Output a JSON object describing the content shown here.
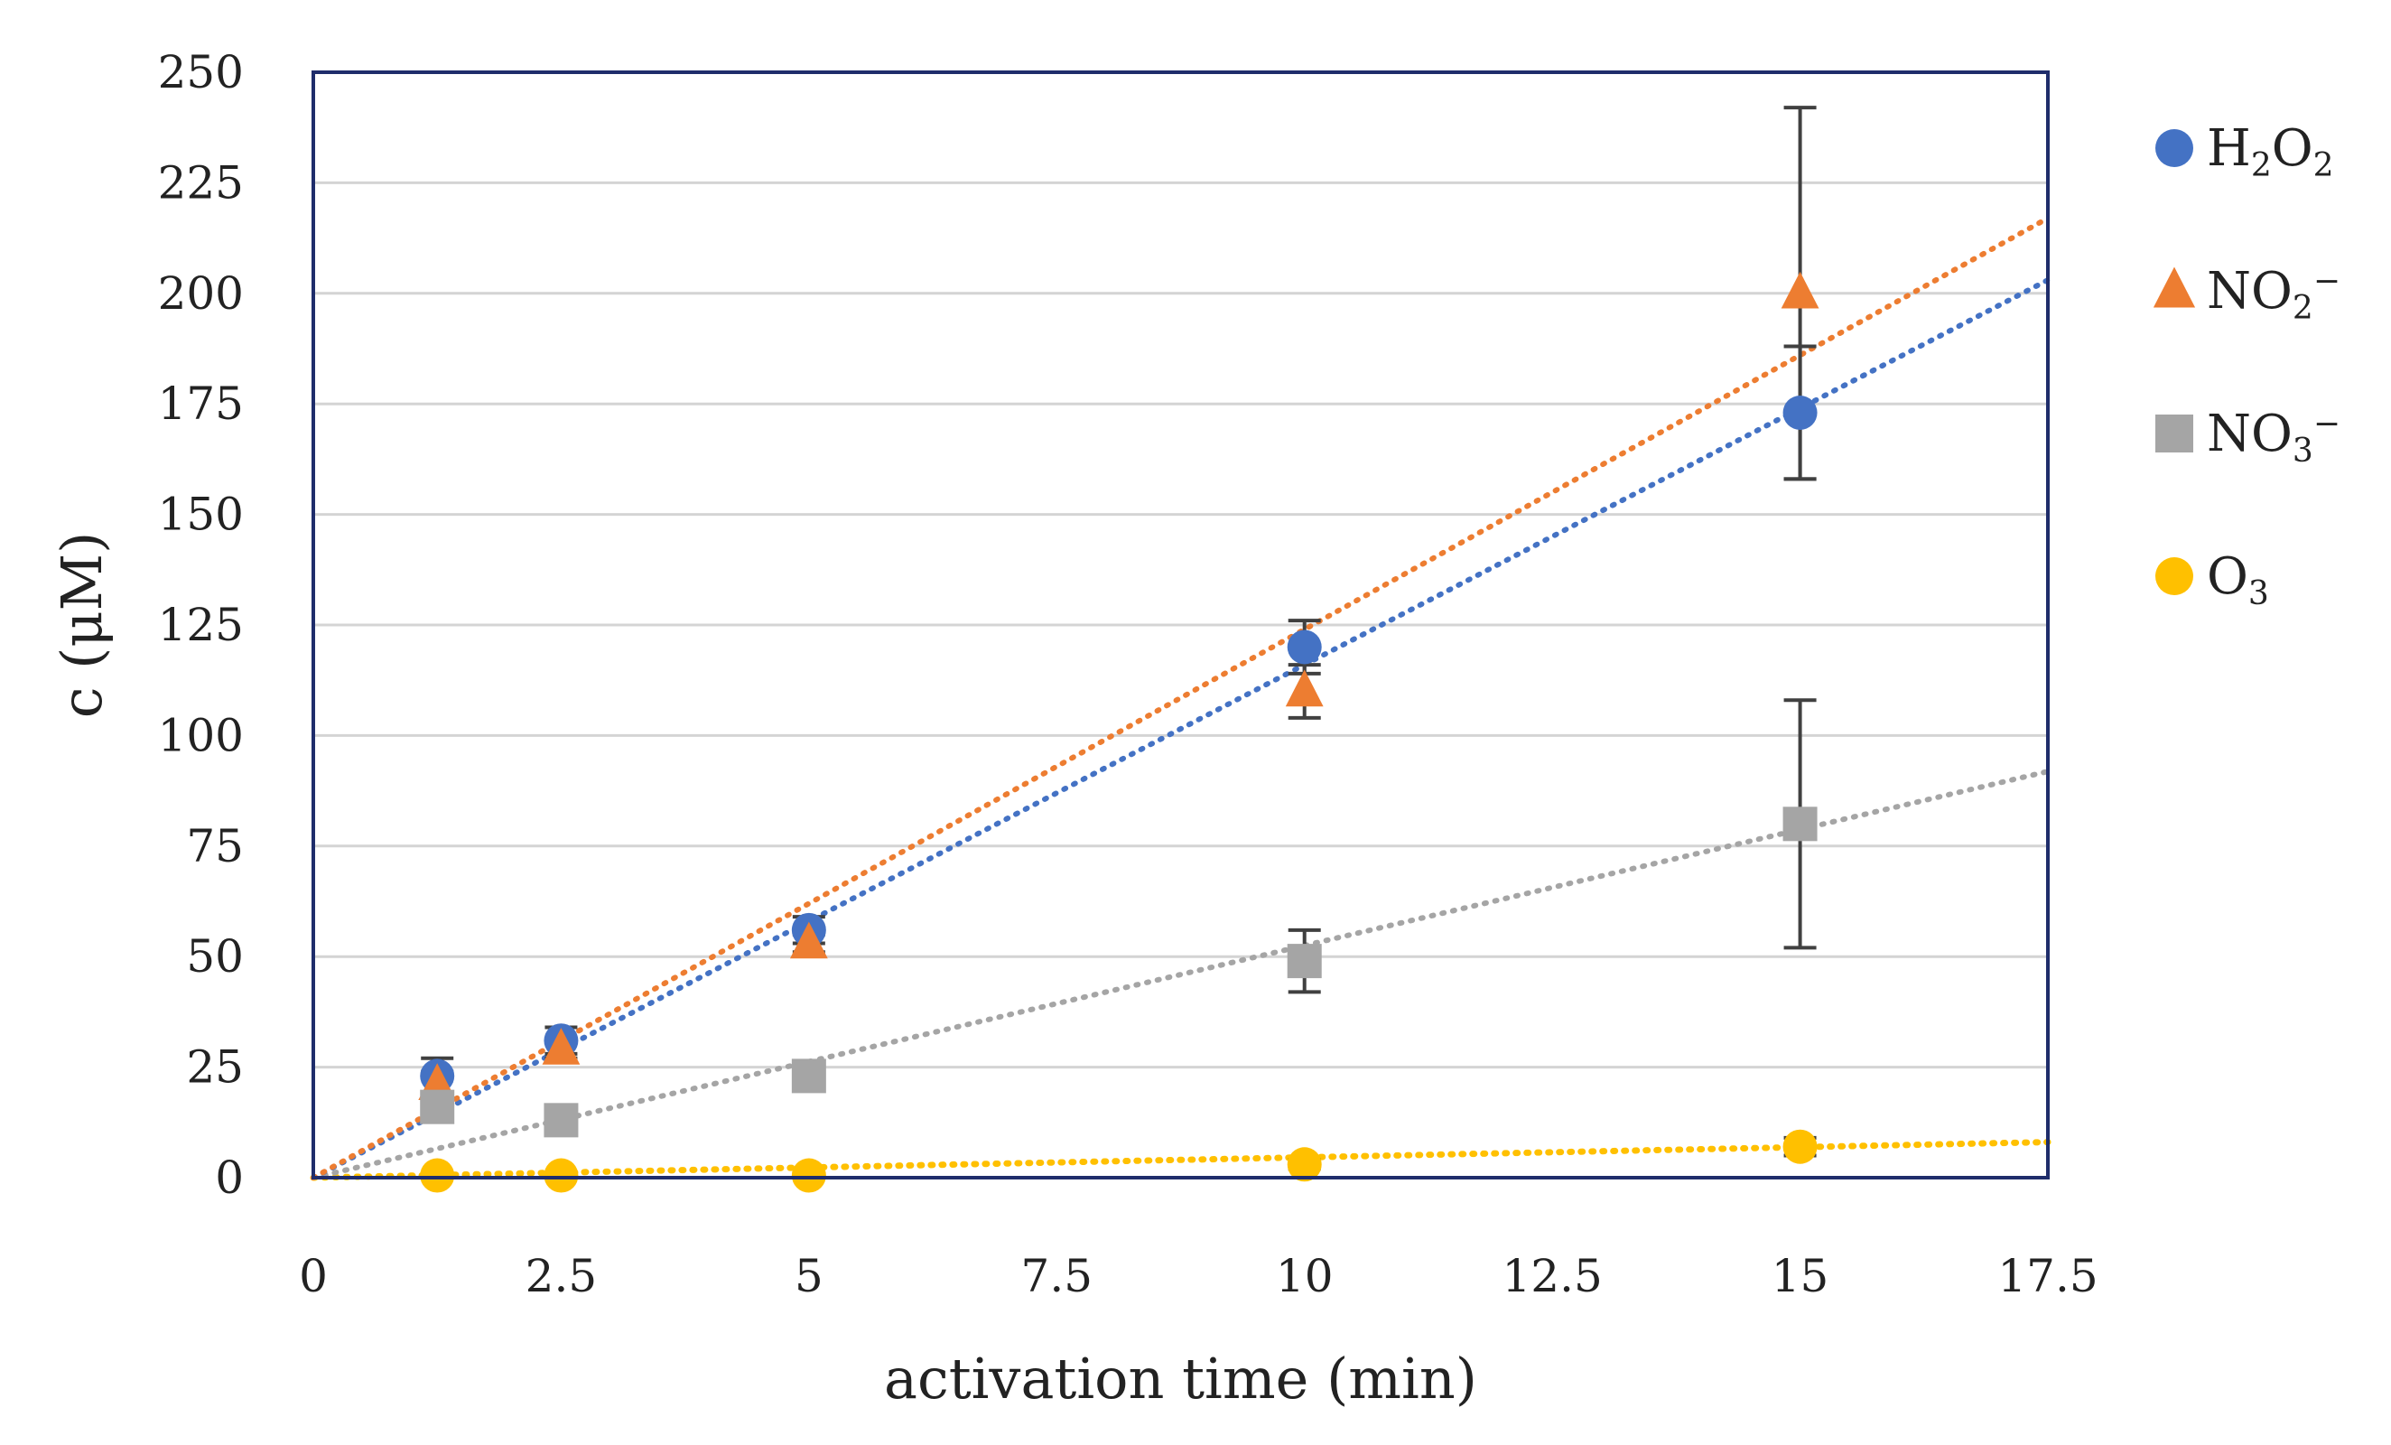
{
  "chart_data": {
    "type": "scatter",
    "title": "",
    "xlabel": "activation time (min)",
    "ylabel": "c (μM)",
    "xlim": [
      0,
      17.5
    ],
    "ylim": [
      0,
      250
    ],
    "xticks": [
      "0",
      "2.5",
      "5",
      "7.5",
      "10",
      "12.5",
      "15",
      "17.5"
    ],
    "yticks": [
      "0",
      "25",
      "50",
      "75",
      "100",
      "125",
      "150",
      "175",
      "200",
      "225",
      "250"
    ],
    "grid": "horizontal",
    "legend_position": "right",
    "series": [
      {
        "name": "H2O2",
        "label_parts": [
          "H",
          "2",
          "O",
          "2",
          ""
        ],
        "marker": "circle",
        "color": "#4472C4",
        "x": [
          1.25,
          2.5,
          5,
          10,
          15
        ],
        "y": [
          23,
          31,
          56,
          120,
          173
        ],
        "err": [
          4,
          3,
          3,
          6,
          15
        ],
        "trend": [
          0,
          11.6
        ]
      },
      {
        "name": "NO2-",
        "label_parts": [
          "NO",
          "2",
          "",
          "",
          "−"
        ],
        "marker": "triangle",
        "color": "#ED7D31",
        "x": [
          1.25,
          2.5,
          5,
          10,
          15
        ],
        "y": [
          21,
          29,
          53,
          110,
          200
        ],
        "err": [
          3,
          2,
          2,
          6,
          42
        ],
        "trend": [
          0,
          12.4
        ]
      },
      {
        "name": "NO3-",
        "label_parts": [
          "NO",
          "3",
          "",
          "",
          "−"
        ],
        "marker": "square",
        "color": "#A5A5A5",
        "x": [
          1.25,
          2.5,
          5,
          10,
          15
        ],
        "y": [
          16,
          13,
          23,
          49,
          80
        ],
        "err": [
          2,
          2,
          2,
          7,
          28
        ],
        "trend": [
          0,
          5.25
        ]
      },
      {
        "name": "O3",
        "label_parts": [
          "O",
          "3",
          "",
          "",
          ""
        ],
        "marker": "circle",
        "color": "#FFC000",
        "x": [
          1.25,
          2.5,
          5,
          10,
          15
        ],
        "y": [
          0.5,
          0.5,
          0.5,
          3,
          7
        ],
        "err": [
          0,
          0,
          0,
          1,
          2
        ],
        "trend": [
          0,
          0.46
        ]
      }
    ]
  }
}
